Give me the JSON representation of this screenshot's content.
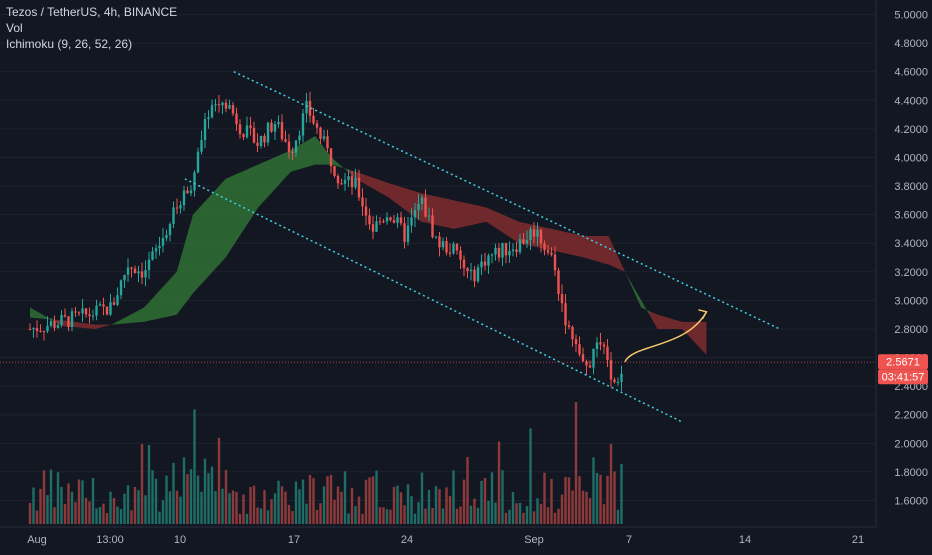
{
  "legend": {
    "symbol": "Tezos / TetherUS, 4h, BINANCE",
    "vol": "Vol",
    "ichimoku": "Ichimoku (9, 26, 52, 26)"
  },
  "colors": {
    "background": "#131722",
    "up": "#26a69a",
    "down": "#ef5350",
    "vol_up": "#1e6e66",
    "vol_down": "#8f3a3a",
    "cloud_bull": "#2e6b33",
    "cloud_bear": "#7a2a2c",
    "channel": "#3fd0e0",
    "projection": "#f5c76b",
    "price_label": "#ef5350",
    "axis_text": "#b2b5be"
  },
  "price_badge": {
    "price": "2.5671",
    "countdown": "03:41:57"
  },
  "chart_data": {
    "type": "candlestick",
    "y_ticks": [
      "5.0000",
      "4.8000",
      "4.6000",
      "4.4000",
      "4.2000",
      "4.0000",
      "3.8000",
      "3.6000",
      "3.4000",
      "3.2000",
      "3.0000",
      "2.8000",
      "2.6000",
      "2.4000",
      "2.2000",
      "2.0000",
      "1.8000",
      "1.6000"
    ],
    "x_ticks": [
      "Aug",
      "13:00",
      "10",
      "17",
      "24",
      "Sep",
      "7",
      "14",
      "21"
    ],
    "ylim": [
      1.5,
      5.05
    ],
    "last_price": 2.5671,
    "price_path": [
      {
        "d": 0,
        "p": 2.8
      },
      {
        "d": 3,
        "p": 2.88
      },
      {
        "d": 5,
        "p": 2.95
      },
      {
        "d": 6,
        "p": 3.25
      },
      {
        "d": 7,
        "p": 3.2
      },
      {
        "d": 8,
        "p": 3.4
      },
      {
        "d": 9,
        "p": 3.65
      },
      {
        "d": 10,
        "p": 3.85
      },
      {
        "d": 11,
        "p": 4.35
      },
      {
        "d": 12,
        "p": 4.4
      },
      {
        "d": 13,
        "p": 4.2
      },
      {
        "d": 14,
        "p": 4.1
      },
      {
        "d": 15,
        "p": 4.25
      },
      {
        "d": 16,
        "p": 4.05
      },
      {
        "d": 17,
        "p": 4.35
      },
      {
        "d": 18,
        "p": 4.1
      },
      {
        "d": 19,
        "p": 3.85
      },
      {
        "d": 20,
        "p": 3.8
      },
      {
        "d": 21,
        "p": 3.5
      },
      {
        "d": 22,
        "p": 3.62
      },
      {
        "d": 23,
        "p": 3.45
      },
      {
        "d": 24,
        "p": 3.7
      },
      {
        "d": 25,
        "p": 3.4
      },
      {
        "d": 26,
        "p": 3.35
      },
      {
        "d": 27,
        "p": 3.15
      },
      {
        "d": 28,
        "p": 3.3
      },
      {
        "d": 29,
        "p": 3.35
      },
      {
        "d": 30,
        "p": 3.4
      },
      {
        "d": 31,
        "p": 3.5
      },
      {
        "d": 32,
        "p": 3.3
      },
      {
        "d": 33,
        "p": 2.8
      },
      {
        "d": 34,
        "p": 2.5
      },
      {
        "d": 35,
        "p": 2.7
      },
      {
        "d": 36,
        "p": 2.35
      },
      {
        "d": 36.5,
        "p": 2.57
      }
    ],
    "ichimoku_cloud": [
      {
        "d": 0,
        "a": 2.95,
        "b": 2.88
      },
      {
        "d": 2,
        "a": 2.82,
        "b": 2.86
      },
      {
        "d": 4,
        "a": 2.8,
        "b": 2.83
      },
      {
        "d": 5,
        "a": 2.83,
        "b": 2.83
      },
      {
        "d": 7,
        "a": 2.95,
        "b": 2.85
      },
      {
        "d": 9,
        "a": 3.2,
        "b": 2.9
      },
      {
        "d": 10,
        "a": 3.6,
        "b": 3.05
      },
      {
        "d": 12,
        "a": 3.85,
        "b": 3.3
      },
      {
        "d": 14,
        "a": 3.95,
        "b": 3.65
      },
      {
        "d": 16,
        "a": 4.05,
        "b": 3.9
      },
      {
        "d": 17.5,
        "a": 4.15,
        "b": 3.95
      },
      {
        "d": 18.5,
        "a": 4.0,
        "b": 3.95
      },
      {
        "d": 20,
        "a": 3.85,
        "b": 3.9
      },
      {
        "d": 22,
        "a": 3.72,
        "b": 3.82
      },
      {
        "d": 24,
        "a": 3.55,
        "b": 3.75
      },
      {
        "d": 26,
        "a": 3.5,
        "b": 3.7
      },
      {
        "d": 28,
        "a": 3.55,
        "b": 3.65
      },
      {
        "d": 30,
        "a": 3.4,
        "b": 3.55
      },
      {
        "d": 32,
        "a": 3.35,
        "b": 3.5
      },
      {
        "d": 34,
        "a": 3.3,
        "b": 3.45
      },
      {
        "d": 35.5,
        "a": 3.25,
        "b": 3.45
      },
      {
        "d": 36.5,
        "a": 3.2,
        "b": 3.2
      },
      {
        "d": 37.5,
        "a": 3.0,
        "b": 2.95
      },
      {
        "d": 38.5,
        "a": 2.8,
        "b": 2.9
      },
      {
        "d": 40,
        "a": 2.8,
        "b": 2.85
      },
      {
        "d": 41.5,
        "a": 2.62,
        "b": 2.85
      }
    ],
    "channel_upper": [
      {
        "d": 12.5,
        "p": 4.6
      },
      {
        "d": 46,
        "p": 2.8
      }
    ],
    "channel_lower": [
      {
        "d": 9.5,
        "p": 3.85
      },
      {
        "d": 40,
        "p": 2.15
      }
    ],
    "projection_arrow": [
      {
        "d": 36.5,
        "p": 2.57
      },
      {
        "d": 39,
        "p": 2.72
      },
      {
        "d": 41.5,
        "p": 2.92
      }
    ]
  }
}
